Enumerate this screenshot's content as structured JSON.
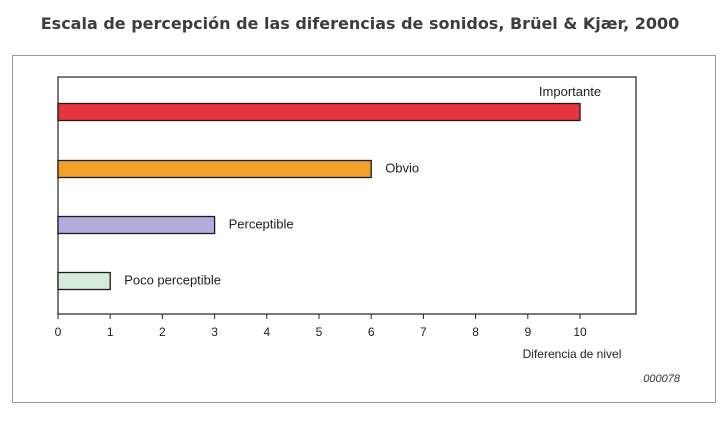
{
  "page": {
    "title": "Escala de percepción de las diferencias de sonidos, Brüel & Kjær, 2000"
  },
  "chart_data": {
    "type": "bar",
    "orientation": "horizontal",
    "categories": [
      "Importante",
      "Obvio",
      "Perceptible",
      "Poco perceptible"
    ],
    "values": [
      10,
      6,
      3,
      1
    ],
    "colors": [
      "#e8343f",
      "#f2a22a",
      "#b1acdc",
      "#d6ecdb"
    ],
    "xlabel": "Diferencia de nivel",
    "xlim": [
      0,
      11
    ],
    "xticks": [
      0,
      1,
      2,
      3,
      4,
      5,
      6,
      7,
      8,
      9,
      10
    ],
    "figure_code": "000078",
    "grid": false,
    "legend": "none"
  }
}
